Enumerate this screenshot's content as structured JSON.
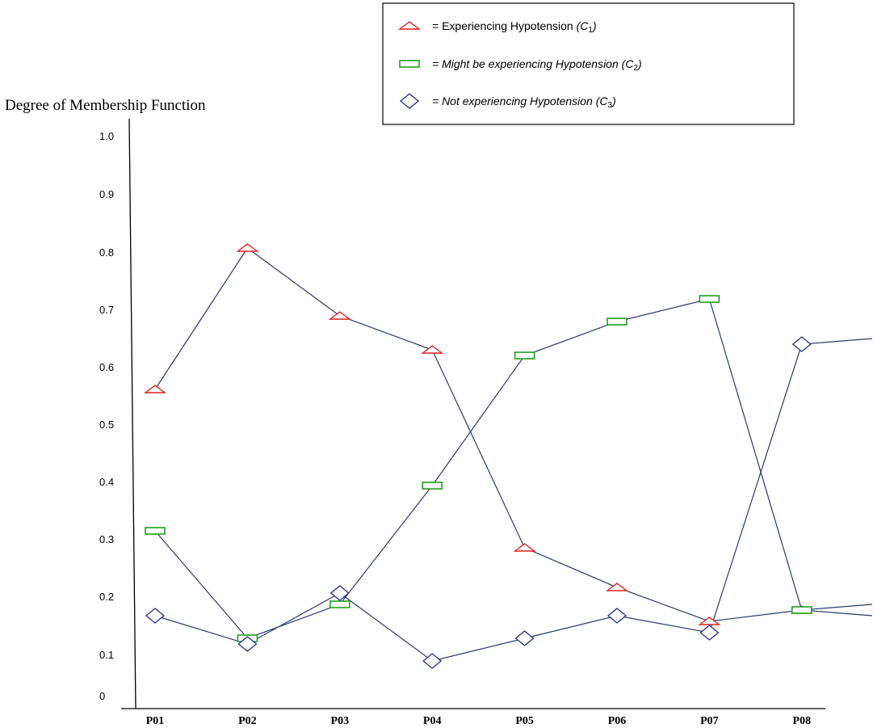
{
  "chart_data": {
    "type": "line",
    "title": "",
    "xlabel": "",
    "ylabel": "Degree of Membership Function",
    "categories": [
      "P01",
      "P02",
      "P03",
      "P04",
      "P05",
      "P06",
      "P07",
      "P08"
    ],
    "y_ticks": [
      "1.0",
      "0.9",
      "0.8",
      "0.7",
      "0.6",
      "0.5",
      "0.4",
      "0.3",
      "0.2",
      "0.1",
      "0"
    ],
    "ylim": [
      0,
      1.0
    ],
    "grid": false,
    "legend_position": "top-right",
    "line_color": "#2b3a6e",
    "series": [
      {
        "marker": "triangle",
        "color": "#e02020",
        "legend": {
          "prefix": "= Experiencing Hypotension ",
          "tag": "(C",
          "sub": "1",
          "close": ")"
        },
        "values": [
          0.54,
          0.79,
          0.67,
          0.61,
          0.26,
          0.19,
          0.13,
          0.15
        ]
      },
      {
        "marker": "rectangle",
        "color": "#1ea01e",
        "legend": {
          "prefix": "= Might be experiencing Hypotension ",
          "tag": "(C",
          "sub": "2",
          "close": ")"
        },
        "values": [
          0.29,
          0.1,
          0.16,
          0.37,
          0.6,
          0.66,
          0.7,
          0.15
        ]
      },
      {
        "marker": "diamond",
        "color": "#2b3a8e",
        "legend": {
          "prefix": "= Not experiencing Hypotension ",
          "tag": "(C",
          "sub": "3",
          "close": ")"
        },
        "values": [
          0.14,
          0.09,
          0.18,
          0.06,
          0.1,
          0.14,
          0.11,
          0.62
        ]
      }
    ]
  }
}
